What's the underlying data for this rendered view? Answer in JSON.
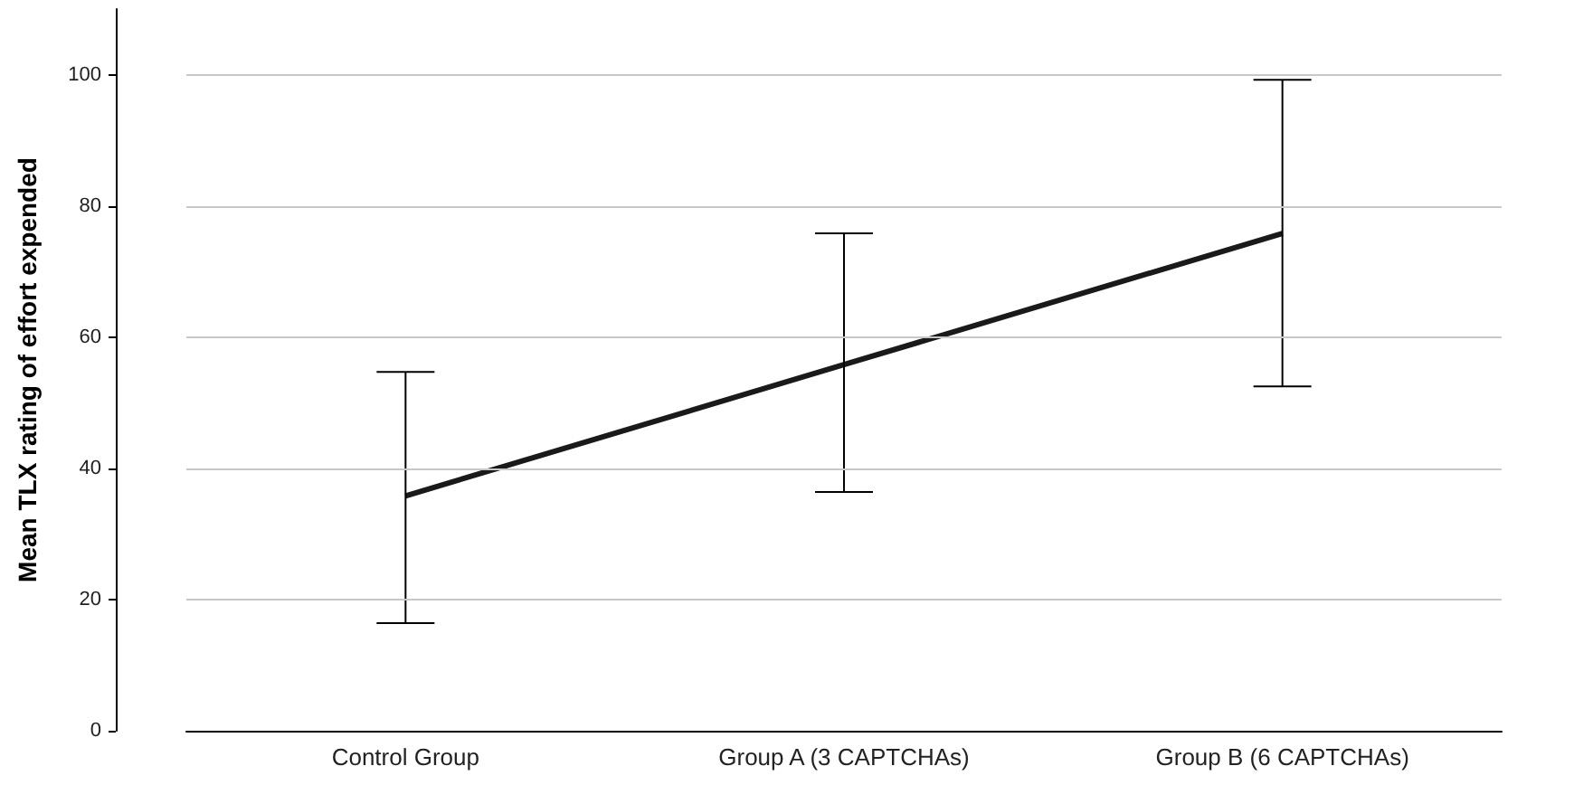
{
  "chart_data": {
    "type": "line",
    "ylabel": "Mean TLX rating of effort expended",
    "categories": [
      "Control Group",
      "Group A (3 CAPTCHAs)",
      "Group B (6 CAPTCHAs)"
    ],
    "values": [
      35.8,
      55.8,
      75.8
    ],
    "errors": [
      [
        16.4,
        54.7
      ],
      [
        36.4,
        75.8
      ],
      [
        52.5,
        99.2
      ]
    ],
    "color": "#1a1a1a",
    "ylim": [
      0,
      110
    ],
    "yticks": [
      0,
      20,
      40,
      60,
      80,
      100
    ],
    "grid": "y",
    "marker": "none",
    "line_style": "solid"
  }
}
